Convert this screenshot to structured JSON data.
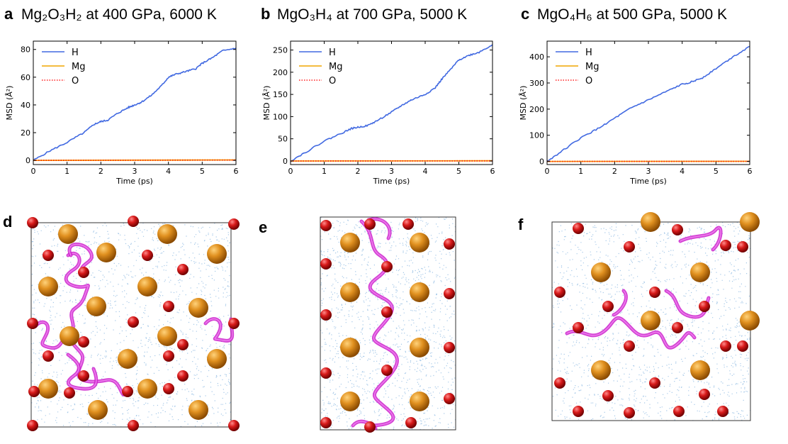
{
  "panels_top": [
    {
      "letter": "a",
      "title": "Mg₂O₃H₂ at 400 GPa, 6000 K"
    },
    {
      "letter": "b",
      "title": "MgO₃H₄ at 700 GPa, 5000 K"
    },
    {
      "letter": "c",
      "title": "MgO₄H₆ at 500 GPa, 5000 K"
    }
  ],
  "panels_bottom": [
    {
      "letter": "d"
    },
    {
      "letter": "e"
    },
    {
      "letter": "f"
    }
  ],
  "colors": {
    "H": "#4169e1",
    "Mg": "#f0a500",
    "O": "#ff2020",
    "trajectory": "#cc22cc",
    "cloud": "#5b9bd5",
    "mg_atom": "#d9821c",
    "o_atom": "#d01818"
  },
  "chart_data": [
    {
      "type": "line",
      "title": "Mg₂O₃H₂ at 400 GPa, 6000 K",
      "xlabel": "Time (ps)",
      "ylabel": "MSD (Å²)",
      "xlim": [
        0,
        6
      ],
      "ylim": [
        -3,
        86
      ],
      "xticks": [
        "0",
        "1",
        "2",
        "3",
        "4",
        "5",
        "6"
      ],
      "yticks": [
        "0",
        "20",
        "40",
        "60",
        "80"
      ],
      "legend": [
        "H",
        "Mg",
        "O"
      ],
      "legend_position": "top-left",
      "series": [
        {
          "name": "H",
          "x": [
            0,
            0.5,
            1,
            1.5,
            1.8,
            2,
            2.2,
            2.5,
            2.8,
            3,
            3.2,
            3.5,
            3.8,
            4,
            4.2,
            4.5,
            4.8,
            5,
            5.3,
            5.6,
            6
          ],
          "y": [
            0,
            7,
            13,
            20,
            26,
            28,
            29,
            34,
            38,
            40,
            42,
            47,
            54,
            60,
            62,
            64,
            66,
            70,
            74,
            79,
            81
          ]
        },
        {
          "name": "Mg",
          "x": [
            0,
            6
          ],
          "y": [
            0,
            0.3
          ]
        },
        {
          "name": "O",
          "x": [
            0,
            6
          ],
          "y": [
            0,
            0.2
          ]
        }
      ]
    },
    {
      "type": "line",
      "title": "MgO₃H₄ at 700 GPa, 5000 K",
      "xlabel": "Time (ps)",
      "ylabel": "MSD (Å²)",
      "xlim": [
        0,
        6
      ],
      "ylim": [
        -8,
        270
      ],
      "xticks": [
        "0",
        "1",
        "2",
        "3",
        "4",
        "5",
        "6"
      ],
      "yticks": [
        "0",
        "50",
        "100",
        "150",
        "200",
        "250"
      ],
      "legend": [
        "H",
        "Mg",
        "O"
      ],
      "legend_position": "top-left",
      "series": [
        {
          "name": "H",
          "x": [
            0,
            0.5,
            1,
            1.5,
            1.8,
            2,
            2.3,
            2.6,
            3,
            3.3,
            3.6,
            4,
            4.3,
            4.5,
            4.8,
            5,
            5.3,
            5.6,
            6
          ],
          "y": [
            0,
            22,
            45,
            62,
            73,
            76,
            80,
            92,
            110,
            125,
            138,
            150,
            165,
            185,
            210,
            228,
            238,
            245,
            262
          ]
        },
        {
          "name": "Mg",
          "x": [
            0,
            6
          ],
          "y": [
            0,
            0.5
          ]
        },
        {
          "name": "O",
          "x": [
            0,
            6
          ],
          "y": [
            0,
            0.3
          ]
        }
      ]
    },
    {
      "type": "line",
      "title": "MgO₄H₆ at 500 GPa, 5000 K",
      "xlabel": "Time (ps)",
      "ylabel": "MSD (Å²)",
      "xlim": [
        0,
        6
      ],
      "ylim": [
        -12,
        460
      ],
      "xticks": [
        "0",
        "1",
        "2",
        "3",
        "4",
        "5",
        "6"
      ],
      "yticks": [
        "0",
        "100",
        "200",
        "300",
        "400"
      ],
      "legend": [
        "H",
        "Mg",
        "O"
      ],
      "legend_position": "top-left",
      "series": [
        {
          "name": "H",
          "x": [
            0,
            0.5,
            1,
            1.5,
            2,
            2.5,
            3,
            3.5,
            4,
            4.3,
            4.6,
            5,
            5.5,
            6
          ],
          "y": [
            0,
            45,
            90,
            125,
            165,
            205,
            235,
            265,
            295,
            305,
            320,
            355,
            400,
            440
          ]
        },
        {
          "name": "Mg",
          "x": [
            0,
            6
          ],
          "y": [
            0,
            0.5
          ]
        },
        {
          "name": "O",
          "x": [
            0,
            6
          ],
          "y": [
            0,
            0.3
          ]
        }
      ]
    }
  ]
}
